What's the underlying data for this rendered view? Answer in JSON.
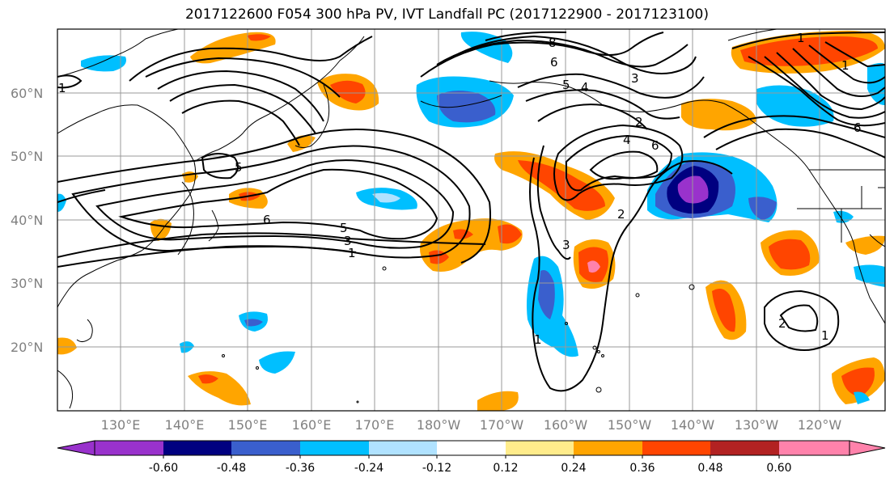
{
  "title": "2017122600 F054 300 hPa PV, IVT Landfall PC (2017122900 - 2017123100)",
  "lat_labels": [
    "60°N",
    "50°N",
    "40°N",
    "30°N",
    "20°N"
  ],
  "lon_labels": [
    "130°E",
    "140°E",
    "150°E",
    "160°E",
    "170°E",
    "180°W",
    "170°W",
    "160°W",
    "150°W",
    "140°W",
    "130°W",
    "120°W"
  ],
  "colorbar": {
    "colors": [
      "#9932cc",
      "#000080",
      "#3a5fcd",
      "#00bfff",
      "#b0e2ff",
      "#ffffff",
      "#ffec8b",
      "#ffa500",
      "#ff4500",
      "#b22222",
      "#ff82ab"
    ],
    "tick_labels": [
      "-0.60",
      "-0.48",
      "-0.36",
      "-0.24",
      "-0.12",
      "0.12",
      "0.24",
      "0.36",
      "0.48",
      "0.60"
    ]
  },
  "contour_labels": [
    "6",
    "5",
    "3",
    "1",
    "6",
    "8",
    "5",
    "4",
    "3",
    "2",
    "4",
    "6",
    "3",
    "2",
    "1",
    "6",
    "1",
    "2",
    "1",
    "1",
    "5",
    "1"
  ],
  "colors": {
    "positive": "#ff4500",
    "negative": "#3a5fcd"
  }
}
